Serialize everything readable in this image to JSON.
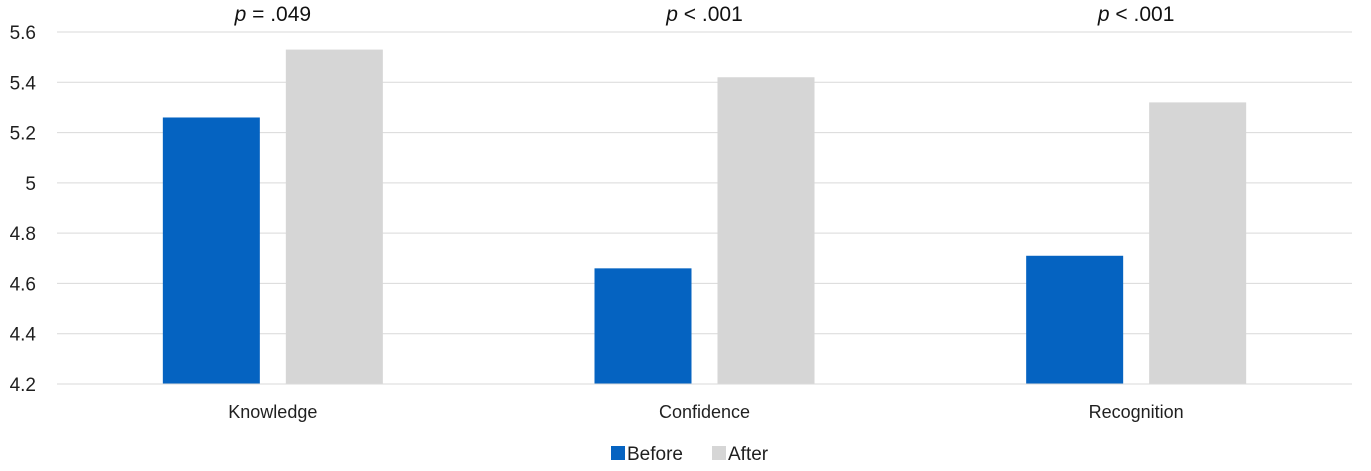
{
  "chart_data": {
    "type": "bar",
    "categories": [
      "Knowledge",
      "Confidence",
      "Recognition"
    ],
    "series": [
      {
        "name": "Before",
        "values": [
          5.26,
          4.66,
          4.71
        ],
        "color": "#0563c1"
      },
      {
        "name": "After",
        "values": [
          5.53,
          5.42,
          5.32
        ],
        "color": "#d6d6d6"
      }
    ],
    "annotations": [
      {
        "italic": "p",
        "rest": " = .049"
      },
      {
        "italic": "p",
        "rest": " < .001"
      },
      {
        "italic": "p",
        "rest": " < .001"
      }
    ],
    "ylim": [
      4.2,
      5.6
    ],
    "yticks": [
      "4.2",
      "4.4",
      "4.6",
      "4.8",
      "5",
      "5.2",
      "5.4",
      "5.6"
    ],
    "grid": true,
    "gridline_color": "#d9d9d9",
    "legend_position": "bottom-center",
    "title": "",
    "xlabel": "",
    "ylabel": ""
  }
}
